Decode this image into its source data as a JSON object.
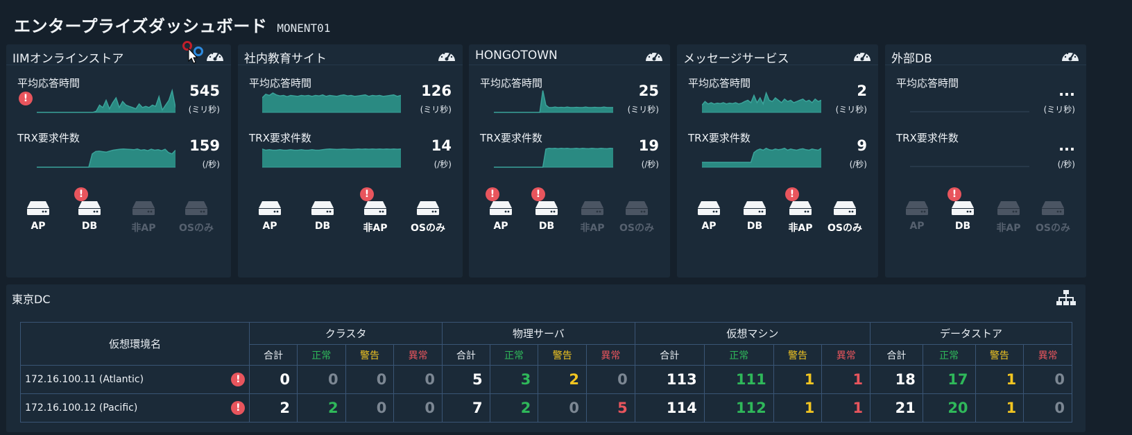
{
  "header": {
    "title": "エンタープライズダッシュボード",
    "code": "MONENT01"
  },
  "labels": {
    "avg_response": "平均応答時間",
    "trx_requests": "TRX要求件数"
  },
  "colors": {
    "chart": "#3aa39a",
    "alert": "#e8555d",
    "ok": "#2fb85a",
    "warn": "#f2c521",
    "err": "#e8555d"
  },
  "cards": [
    {
      "title": "IIMオンラインストア",
      "icon": "gauge-icon",
      "response": {
        "value": "545",
        "unit": "(ミリ秒)",
        "alert": true
      },
      "trx": {
        "value": "159",
        "unit": "(/秒)"
      },
      "servers": [
        {
          "label": "AP",
          "active": true,
          "alert": false
        },
        {
          "label": "DB",
          "active": true,
          "alert": true
        },
        {
          "label": "非AP",
          "active": false,
          "alert": false
        },
        {
          "label": "OSのみ",
          "active": false,
          "alert": false
        }
      ]
    },
    {
      "title": "社内教育サイト",
      "icon": "gauge-icon",
      "response": {
        "value": "126",
        "unit": "(ミリ秒)",
        "alert": false
      },
      "trx": {
        "value": "14",
        "unit": "(/秒)"
      },
      "servers": [
        {
          "label": "AP",
          "active": true,
          "alert": false
        },
        {
          "label": "DB",
          "active": true,
          "alert": false
        },
        {
          "label": "非AP",
          "active": true,
          "alert": true
        },
        {
          "label": "OSのみ",
          "active": true,
          "alert": false
        }
      ]
    },
    {
      "title": "HONGOTOWN",
      "icon": "gauge-icon",
      "response": {
        "value": "25",
        "unit": "(ミリ秒)",
        "alert": false
      },
      "trx": {
        "value": "19",
        "unit": "(/秒)"
      },
      "servers": [
        {
          "label": "AP",
          "active": true,
          "alert": true
        },
        {
          "label": "DB",
          "active": true,
          "alert": true
        },
        {
          "label": "非AP",
          "active": false,
          "alert": false
        },
        {
          "label": "OSのみ",
          "active": false,
          "alert": false
        }
      ]
    },
    {
      "title": "メッセージサービス",
      "icon": "gauge-icon",
      "response": {
        "value": "2",
        "unit": "(ミリ秒)",
        "alert": false
      },
      "trx": {
        "value": "9",
        "unit": "(/秒)"
      },
      "servers": [
        {
          "label": "AP",
          "active": true,
          "alert": false
        },
        {
          "label": "DB",
          "active": true,
          "alert": false
        },
        {
          "label": "非AP",
          "active": true,
          "alert": true
        },
        {
          "label": "OSのみ",
          "active": true,
          "alert": false
        }
      ]
    },
    {
      "title": "外部DB",
      "icon": "gauge-icon",
      "response": {
        "value": "...",
        "unit": "(ミリ秒)",
        "alert": false
      },
      "trx": {
        "value": "...",
        "unit": "(/秒)"
      },
      "servers": [
        {
          "label": "AP",
          "active": false,
          "alert": false
        },
        {
          "label": "DB",
          "active": true,
          "alert": true
        },
        {
          "label": "非AP",
          "active": false,
          "alert": false
        },
        {
          "label": "OSのみ",
          "active": false,
          "alert": false
        }
      ]
    }
  ],
  "datacenter": {
    "title": "東京DC",
    "icon": "network-topology-icon",
    "env_header": "仮想環境名",
    "groups": [
      "クラスタ",
      "物理サーバ",
      "仮想マシン",
      "データストア"
    ],
    "subheaders": [
      "合計",
      "正常",
      "警告",
      "異常"
    ],
    "rows": [
      {
        "name": "172.16.100.11 (Atlantic)",
        "alert": true,
        "values": [
          [
            0,
            0,
            0,
            0
          ],
          [
            5,
            3,
            2,
            0
          ],
          [
            113,
            111,
            1,
            1
          ],
          [
            18,
            17,
            1,
            0
          ]
        ]
      },
      {
        "name": "172.16.100.12 (Pacific)",
        "alert": true,
        "values": [
          [
            2,
            2,
            0,
            0
          ],
          [
            7,
            2,
            0,
            5
          ],
          [
            114,
            112,
            1,
            1
          ],
          [
            21,
            20,
            1,
            0
          ]
        ]
      }
    ]
  }
}
